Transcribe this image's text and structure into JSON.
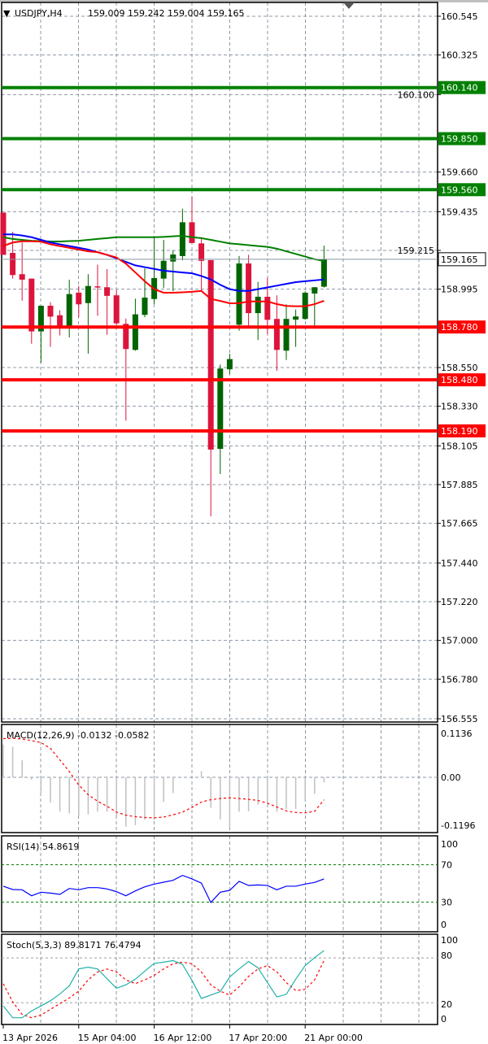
{
  "header": {
    "symbol": "USDJPY,H4",
    "ohlc": "159.009 159.242 159.004 159.165"
  },
  "colors": {
    "bull": "#006400",
    "bear": "#dc143c",
    "resistance": "#008000",
    "support": "#ff0000",
    "ma_fast": "#ff0000",
    "ma_mid": "#0000ff",
    "ma_slow": "#008000",
    "grid": "#8c98a4",
    "macd_hist": "#c0c0c0",
    "signal": "#ff0000",
    "rsi": "#0000ff",
    "stoch_main": "#20b2aa",
    "level_dash": "#008000"
  },
  "chart_data": [
    {
      "type": "candlestick",
      "panel": "main",
      "ylim": [
        156.555,
        160.545
      ],
      "grid": true,
      "y_ticks": [
        "160.545",
        "160.325",
        "160.100",
        "159.660",
        "159.435",
        "159.215",
        "158.995",
        "158.550",
        "158.330",
        "158.105",
        "157.885",
        "157.665",
        "157.440",
        "157.220",
        "157.000",
        "156.780",
        "156.555"
      ],
      "x_ticks": [
        "13 Apr 2026",
        "15 Apr 04:00",
        "16 Apr 12:00",
        "17 Apr 20:00",
        "21 Apr 00:00"
      ],
      "x_tick_index": [
        0,
        8,
        16,
        24,
        32
      ],
      "candles": [
        [
          159.43,
          159.43,
          159.19,
          159.19
        ],
        [
          159.201,
          159.321,
          159.055,
          159.075
        ],
        [
          159.08,
          159.26,
          158.929,
          159.049
        ],
        [
          159.055,
          159.055,
          158.685,
          158.755
        ],
        [
          158.755,
          158.901,
          158.578,
          158.901
        ],
        [
          158.901,
          158.921,
          158.667,
          158.839
        ],
        [
          158.847,
          158.875,
          158.732,
          158.785
        ],
        [
          158.785,
          159.049,
          158.721,
          158.967
        ],
        [
          158.975,
          159.013,
          158.836,
          158.909
        ],
        [
          158.916,
          159.08,
          158.629,
          159.013
        ],
        [
          159.011,
          159.134,
          158.844,
          159.005
        ],
        [
          159.006,
          159.109,
          158.736,
          158.957
        ],
        [
          158.96,
          158.99,
          158.79,
          158.801
        ],
        [
          158.798,
          158.828,
          158.248,
          158.655
        ],
        [
          158.65,
          158.941,
          158.645,
          158.852
        ],
        [
          158.849,
          159.113,
          158.836,
          158.947
        ],
        [
          158.939,
          159.29,
          158.91,
          159.058
        ],
        [
          159.055,
          159.275,
          159.002,
          159.156
        ],
        [
          159.152,
          159.214,
          158.983,
          159.192
        ],
        [
          159.183,
          159.452,
          159.159,
          159.375
        ],
        [
          159.375,
          159.521,
          159.257,
          159.257
        ],
        [
          159.255,
          159.29,
          158.983,
          159.156
        ],
        [
          159.16,
          159.16,
          157.705,
          158.084
        ],
        [
          158.088,
          158.567,
          157.945,
          158.544
        ],
        [
          158.54,
          158.628,
          158.513,
          158.598
        ],
        [
          158.793,
          159.183,
          158.759,
          159.141
        ],
        [
          159.141,
          159.19,
          158.782,
          158.859
        ],
        [
          158.859,
          159.036,
          158.706,
          158.952
        ],
        [
          158.952,
          159.059,
          158.74,
          158.821
        ],
        [
          158.826,
          158.96,
          158.531,
          158.65
        ],
        [
          158.646,
          158.909,
          158.593,
          158.826
        ],
        [
          158.822,
          158.879,
          158.667,
          158.84
        ],
        [
          158.826,
          158.983,
          158.821,
          158.975
        ],
        [
          158.97,
          159.006,
          158.775,
          159.006
        ],
        [
          159.009,
          159.242,
          159.004,
          159.165
        ]
      ],
      "ma_fast": [
        159.24,
        159.26,
        159.267,
        159.267,
        159.265,
        159.25,
        159.24,
        159.23,
        159.22,
        159.21,
        159.205,
        159.19,
        159.175,
        159.14,
        159.09,
        159.04,
        158.995,
        158.975,
        158.975,
        158.977,
        158.98,
        158.985,
        158.94,
        158.928,
        158.915,
        158.915,
        158.925,
        158.925,
        158.925,
        158.91,
        158.9,
        158.898,
        158.898,
        158.91,
        158.929
      ],
      "ma_mid": [
        159.306,
        159.306,
        159.3,
        159.29,
        159.275,
        159.26,
        159.25,
        159.24,
        159.23,
        159.22,
        159.205,
        159.19,
        159.17,
        159.15,
        159.13,
        159.12,
        159.11,
        159.1,
        159.095,
        159.09,
        159.085,
        159.07,
        159.05,
        159.02,
        158.995,
        158.985,
        158.985,
        158.995,
        159.005,
        159.015,
        159.025,
        159.035,
        159.04,
        159.045,
        159.05
      ],
      "ma_slow": [
        159.29,
        159.28,
        159.275,
        159.27,
        159.268,
        159.266,
        159.266,
        159.268,
        159.27,
        159.275,
        159.28,
        159.285,
        159.29,
        159.29,
        159.29,
        159.29,
        159.29,
        159.292,
        159.295,
        159.298,
        159.29,
        159.285,
        159.275,
        159.265,
        159.255,
        159.25,
        159.245,
        159.24,
        159.235,
        159.225,
        159.21,
        159.195,
        159.18,
        159.165,
        159.155
      ],
      "resistance_levels": [
        "160.140",
        "159.850",
        "159.560"
      ],
      "support_levels": [
        "158.780",
        "158.480",
        "158.190"
      ],
      "current_price": "159.165"
    },
    {
      "type": "bar",
      "panel": "macd",
      "label": "MACD(12,26,9) -0.0132 -0.0582",
      "y_ticks": [
        "0.1136",
        "0.00",
        "-0.1196"
      ],
      "ylim": [
        -0.1196,
        0.1136
      ],
      "histogram": [
        0.085,
        0.079,
        0.044,
        -0.006,
        -0.04,
        -0.065,
        -0.089,
        -0.093,
        -0.1,
        -0.096,
        -0.089,
        -0.089,
        -0.1,
        -0.128,
        -0.124,
        -0.11,
        -0.11,
        -0.064,
        -0.041,
        -0.001,
        0.0,
        0.016,
        -0.079,
        -0.109,
        -0.131,
        -0.089,
        -0.088,
        -0.071,
        -0.068,
        -0.089,
        -0.082,
        -0.082,
        -0.061,
        -0.043,
        -0.0132
      ],
      "signal": [
        0.1,
        0.101,
        0.099,
        0.095,
        0.09,
        0.075,
        0.045,
        0.015,
        -0.02,
        -0.045,
        -0.062,
        -0.075,
        -0.09,
        -0.098,
        -0.102,
        -0.104,
        -0.105,
        -0.103,
        -0.097,
        -0.09,
        -0.078,
        -0.064,
        -0.058,
        -0.055,
        -0.053,
        -0.055,
        -0.057,
        -0.06,
        -0.067,
        -0.077,
        -0.087,
        -0.091,
        -0.092,
        -0.088,
        -0.0582
      ]
    },
    {
      "type": "line",
      "panel": "rsi",
      "label": "RSI(14) 54.8619",
      "y_ticks": [
        "100",
        "70",
        "30",
        "0"
      ],
      "ylim": [
        0,
        100
      ],
      "levels": [
        70,
        30
      ],
      "values": [
        47.0,
        43.5,
        43.2,
        36.8,
        40.6,
        39.7,
        38.3,
        44.6,
        43.2,
        45.5,
        45.5,
        44.1,
        41.2,
        36.8,
        42.0,
        46.4,
        49.3,
        51.3,
        53.3,
        58.6,
        54.8,
        50.4,
        29.6,
        40.6,
        42.6,
        52.2,
        47.8,
        48.4,
        47.8,
        43.2,
        47.0,
        47.0,
        49.3,
        51.0,
        54.86
      ]
    },
    {
      "type": "line",
      "panel": "stoch",
      "label": "Stoch(5,3,3) 89.8171 76.4794",
      "y_ticks": [
        "100",
        "80",
        "20",
        "0"
      ],
      "ylim": [
        0,
        100
      ],
      "levels": [
        80,
        20
      ],
      "main": [
        15.8,
        0,
        0,
        9.1,
        15.8,
        22.7,
        31.8,
        42.5,
        65.2,
        67.6,
        65.2,
        52.2,
        39.4,
        44.0,
        51.5,
        62.2,
        72.7,
        74.3,
        76.4,
        71.3,
        50.0,
        25.8,
        30.3,
        34.9,
        54.5,
        65.2,
        75.2,
        66.7,
        47.0,
        27.9,
        31.3,
        51.5,
        69.7,
        80.4,
        89.82
      ],
      "signal": [
        45.5,
        21.2,
        4.5,
        0,
        3.6,
        11.2,
        18.8,
        26.4,
        35.5,
        50.6,
        61.2,
        65.2,
        61.2,
        50.6,
        45.5,
        50.6,
        56.7,
        65.2,
        72.1,
        74.3,
        72.1,
        61.2,
        44.0,
        35.5,
        30.3,
        41.5,
        55.2,
        65.2,
        69.7,
        61.2,
        47.0,
        36.4,
        37.9,
        50.6,
        76.48
      ]
    }
  ]
}
